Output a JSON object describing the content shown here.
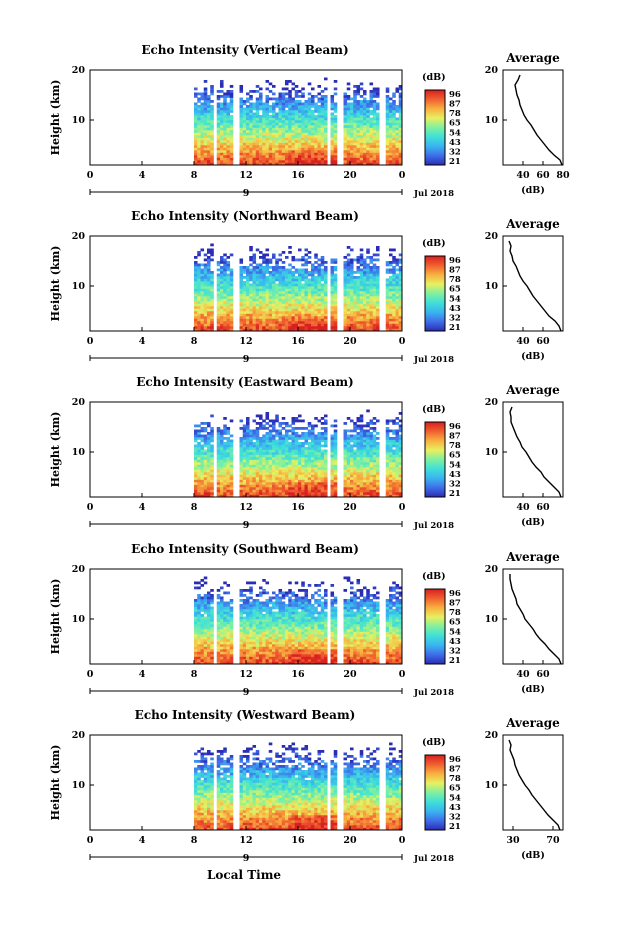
{
  "figure": {
    "xlabel_bottom": "Local Time",
    "date_label": "Jul 2018",
    "date_tick": "9",
    "avg_title": "Average",
    "avg_xlabel": "(dB)",
    "colorbar_unit": "(dB)",
    "colorbar_ticks": [
      "96",
      "87",
      "78",
      "65",
      "54",
      "43",
      "32",
      "21"
    ],
    "colormap": [
      "#2a2cb4",
      "#3f6ee8",
      "#3ab4f0",
      "#3fe0d8",
      "#7ff0a0",
      "#e8f060",
      "#f8b040",
      "#f06030",
      "#d82020"
    ],
    "blank_color": "#ffffff"
  },
  "chart_data": [
    {
      "type": "heatmap",
      "title": "Echo Intensity (Vertical Beam)",
      "ylabel": "Height (km)",
      "xlim": [
        0,
        24
      ],
      "ylim": [
        1,
        20
      ],
      "xticks": [
        "0",
        "4",
        "8",
        "12",
        "16",
        "20",
        "0"
      ],
      "yticks": [
        "20",
        "10"
      ],
      "data_start_hour": 8,
      "data_gaps_hours": [
        [
          9.3,
          9.6
        ],
        [
          10.9,
          11.3
        ],
        [
          18.2,
          18.5
        ],
        [
          19.0,
          19.3
        ],
        [
          22.2,
          22.6
        ]
      ],
      "upper_valid_km": 19,
      "average_profile": {
        "xlim": [
          20,
          80
        ],
        "xticks": [
          "40",
          "60",
          "80"
        ],
        "height_km": [
          1,
          2,
          3,
          4,
          5,
          6,
          7,
          8,
          9,
          10,
          11,
          12,
          13,
          14,
          15,
          16,
          17,
          18,
          19
        ],
        "value_db": [
          79,
          77,
          71,
          66,
          62,
          58,
          54,
          51,
          48,
          44,
          41,
          39,
          37,
          36,
          34,
          33,
          32,
          35,
          37
        ]
      }
    },
    {
      "type": "heatmap",
      "title": "Echo Intensity (Northward Beam)",
      "ylabel": "Height (km)",
      "xlim": [
        0,
        24
      ],
      "ylim": [
        1,
        20
      ],
      "xticks": [
        "0",
        "4",
        "8",
        "12",
        "16",
        "20",
        "0"
      ],
      "yticks": [
        "20",
        "10"
      ],
      "data_start_hour": 8,
      "data_gaps_hours": [
        [
          9.3,
          9.6
        ],
        [
          10.9,
          11.3
        ],
        [
          18.2,
          18.5
        ],
        [
          19.0,
          19.3
        ],
        [
          22.2,
          22.6
        ]
      ],
      "upper_valid_km": 18,
      "average_profile": {
        "xlim": [
          20,
          80
        ],
        "xticks": [
          "40",
          "60"
        ],
        "height_km": [
          1,
          2,
          3,
          4,
          5,
          6,
          7,
          8,
          9,
          10,
          11,
          12,
          13,
          14,
          15,
          16,
          17,
          18,
          19
        ],
        "value_db": [
          78,
          76,
          72,
          66,
          62,
          58,
          54,
          50,
          47,
          44,
          40,
          37,
          35,
          33,
          30,
          29,
          27,
          28,
          26
        ]
      }
    },
    {
      "type": "heatmap",
      "title": "Echo Intensity (Eastward Beam)",
      "ylabel": "Height (km)",
      "xlim": [
        0,
        24
      ],
      "ylim": [
        1,
        20
      ],
      "xticks": [
        "0",
        "4",
        "8",
        "12",
        "16",
        "20",
        "0"
      ],
      "yticks": [
        "20",
        "10"
      ],
      "data_start_hour": 8,
      "data_gaps_hours": [
        [
          9.3,
          9.6
        ],
        [
          10.9,
          11.3
        ],
        [
          18.2,
          18.5
        ],
        [
          19.0,
          19.3
        ],
        [
          22.2,
          22.6
        ]
      ],
      "upper_valid_km": 19,
      "average_profile": {
        "xlim": [
          20,
          80
        ],
        "xticks": [
          "40",
          "60"
        ],
        "height_km": [
          1,
          2,
          3,
          4,
          5,
          6,
          7,
          8,
          9,
          10,
          11,
          12,
          13,
          14,
          15,
          16,
          17,
          18,
          19
        ],
        "value_db": [
          78,
          76,
          71,
          66,
          61,
          58,
          53,
          49,
          46,
          43,
          39,
          37,
          34,
          32,
          30,
          28,
          28,
          27,
          29
        ]
      }
    },
    {
      "type": "heatmap",
      "title": "Echo Intensity (Southward Beam)",
      "ylabel": "Height (km)",
      "xlim": [
        0,
        24
      ],
      "ylim": [
        1,
        20
      ],
      "xticks": [
        "0",
        "4",
        "8",
        "12",
        "16",
        "20",
        "0"
      ],
      "yticks": [
        "20",
        "10"
      ],
      "data_start_hour": 8,
      "data_gaps_hours": [
        [
          9.3,
          9.6
        ],
        [
          10.9,
          11.3
        ],
        [
          18.2,
          18.5
        ],
        [
          19.0,
          19.3
        ],
        [
          22.2,
          22.6
        ]
      ],
      "upper_valid_km": 19,
      "average_profile": {
        "xlim": [
          20,
          80
        ],
        "xticks": [
          "40",
          "60"
        ],
        "height_km": [
          1,
          2,
          3,
          4,
          5,
          6,
          7,
          8,
          9,
          10,
          11,
          12,
          13,
          14,
          15,
          16,
          17,
          18,
          19
        ],
        "value_db": [
          78,
          76,
          71,
          66,
          62,
          57,
          53,
          50,
          46,
          42,
          40,
          37,
          34,
          33,
          31,
          29,
          28,
          27,
          27
        ]
      }
    },
    {
      "type": "heatmap",
      "title": "Echo Intensity (Westward Beam)",
      "ylabel": "Height (km)",
      "xlim": [
        0,
        24
      ],
      "ylim": [
        1,
        20
      ],
      "xticks": [
        "0",
        "4",
        "8",
        "12",
        "16",
        "20",
        "0"
      ],
      "yticks": [
        "20",
        "10"
      ],
      "data_start_hour": 8,
      "data_gaps_hours": [
        [
          9.3,
          9.6
        ],
        [
          10.9,
          11.3
        ],
        [
          18.2,
          18.5
        ],
        [
          19.0,
          19.3
        ],
        [
          22.2,
          22.6
        ]
      ],
      "upper_valid_km": 18,
      "average_profile": {
        "xlim": [
          20,
          80
        ],
        "xticks": [
          "30",
          "70"
        ],
        "height_km": [
          1,
          2,
          3,
          4,
          5,
          6,
          7,
          8,
          9,
          10,
          11,
          12,
          13,
          14,
          15,
          16,
          17,
          18,
          19
        ],
        "value_db": [
          77,
          75,
          70,
          65,
          61,
          57,
          53,
          49,
          46,
          42,
          39,
          36,
          34,
          32,
          31,
          29,
          27,
          28,
          26
        ]
      }
    }
  ]
}
